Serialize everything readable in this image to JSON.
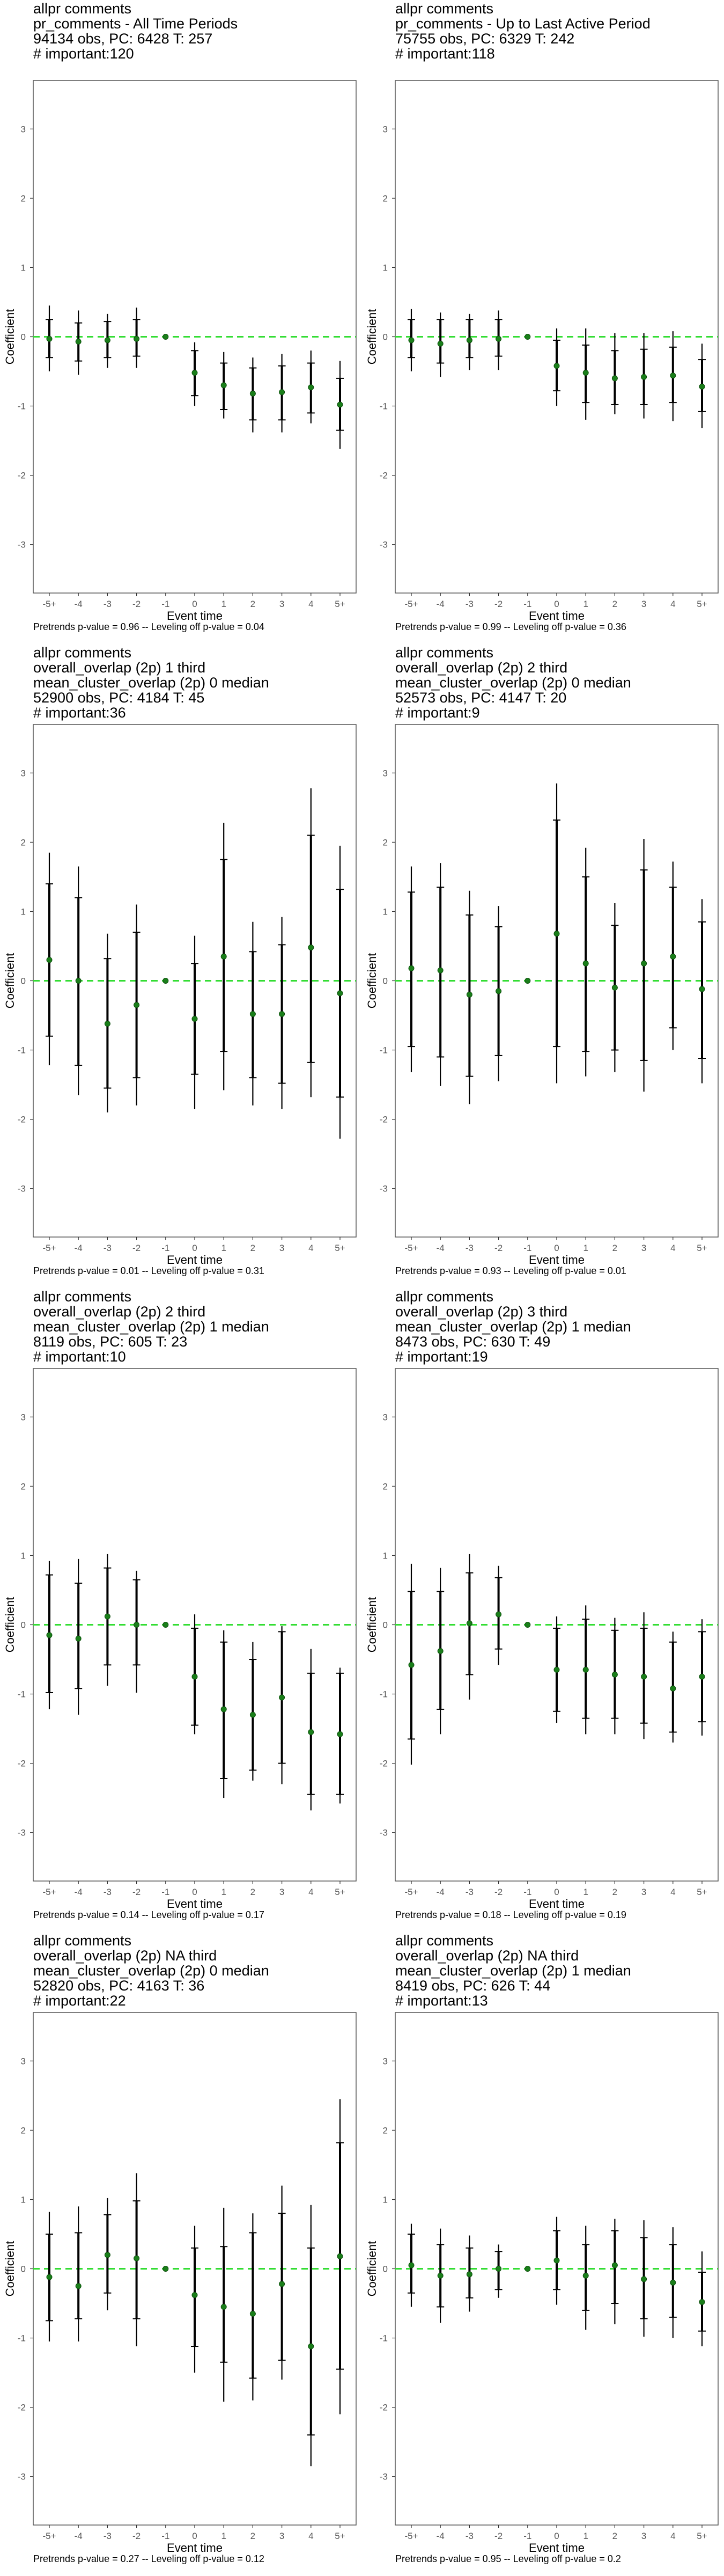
{
  "common": {
    "ylabel": "Coefficient",
    "xlabel": "Event time",
    "categories": [
      "-5+",
      "-4",
      "-3",
      "-2",
      "-1",
      "0",
      "1",
      "2",
      "3",
      "4",
      "5+"
    ],
    "yticks": [
      3,
      2,
      1,
      0,
      -1,
      -2,
      -3
    ],
    "point_color": "#1a7f1a",
    "ref_line_color": "#33dd33",
    "bar_color": "#000000"
  },
  "chart_data": [
    {
      "type": "scatter",
      "title_lines": [
        "allpr comments",
        "pr_comments - All Time Periods",
        "94134 obs, PC: 6428 T: 257",
        "# important:120"
      ],
      "footer": "Pretrends p-value = 0.96 -- Leveling off p-value = 0.04",
      "xlabel": "Event time",
      "ylabel": "Coefficient",
      "ylim": [
        -3.7,
        3.7
      ],
      "categories": [
        "-5+",
        "-4",
        "-3",
        "-2",
        "-1",
        "0",
        "1",
        "2",
        "3",
        "4",
        "5+"
      ],
      "estimates": [
        -0.03,
        -0.07,
        -0.05,
        -0.03,
        0,
        -0.52,
        -0.7,
        -0.82,
        -0.8,
        -0.73,
        -0.98
      ],
      "ci90_low": [
        -0.3,
        -0.35,
        -0.3,
        -0.28,
        0,
        -0.85,
        -1.05,
        -1.2,
        -1.2,
        -1.1,
        -1.35
      ],
      "ci90_high": [
        0.25,
        0.2,
        0.22,
        0.25,
        0,
        -0.2,
        -0.38,
        -0.45,
        -0.42,
        -0.38,
        -0.6
      ],
      "ci95_low": [
        -0.5,
        -0.55,
        -0.45,
        -0.45,
        0,
        -1.0,
        -1.18,
        -1.38,
        -1.38,
        -1.25,
        -1.62
      ],
      "ci95_high": [
        0.45,
        0.38,
        0.33,
        0.42,
        0,
        -0.08,
        -0.22,
        -0.3,
        -0.25,
        -0.2,
        -0.35
      ]
    },
    {
      "type": "scatter",
      "title_lines": [
        "allpr comments",
        "pr_comments - Up to Last Active Period",
        "75755 obs, PC: 6329 T: 242",
        "# important:118"
      ],
      "footer": "Pretrends p-value = 0.99 -- Leveling off p-value = 0.36",
      "xlabel": "Event time",
      "ylabel": "Coefficient",
      "ylim": [
        -3.7,
        3.7
      ],
      "categories": [
        "-5+",
        "-4",
        "-3",
        "-2",
        "-1",
        "0",
        "1",
        "2",
        "3",
        "4",
        "5+"
      ],
      "estimates": [
        -0.05,
        -0.1,
        -0.05,
        -0.03,
        0,
        -0.42,
        -0.52,
        -0.6,
        -0.58,
        -0.56,
        -0.72
      ],
      "ci90_low": [
        -0.3,
        -0.38,
        -0.3,
        -0.28,
        0,
        -0.78,
        -0.95,
        -0.98,
        -0.98,
        -0.95,
        -1.08
      ],
      "ci90_high": [
        0.25,
        0.25,
        0.25,
        0.25,
        0,
        -0.05,
        -0.12,
        -0.2,
        -0.18,
        -0.15,
        -0.33
      ],
      "ci95_low": [
        -0.5,
        -0.58,
        -0.48,
        -0.48,
        0,
        -1.0,
        -1.2,
        -1.12,
        -1.18,
        -1.22,
        -1.32
      ],
      "ci95_high": [
        0.4,
        0.35,
        0.33,
        0.38,
        0,
        0.12,
        0.12,
        0.05,
        0.05,
        0.08,
        -0.1
      ]
    },
    {
      "type": "scatter",
      "title_lines": [
        "allpr comments",
        "overall_overlap (2p) 1 third",
        "mean_cluster_overlap (2p) 0 median",
        "52900 obs, PC: 4184 T: 45",
        "# important:36"
      ],
      "footer": "Pretrends p-value = 0.01 -- Leveling off p-value = 0.31",
      "xlabel": "Event time",
      "ylabel": "Coefficient",
      "ylim": [
        -3.7,
        3.7
      ],
      "categories": [
        "-5+",
        "-4",
        "-3",
        "-2",
        "-1",
        "0",
        "1",
        "2",
        "3",
        "4",
        "5+"
      ],
      "estimates": [
        0.3,
        0.0,
        -0.62,
        -0.35,
        0,
        -0.55,
        0.35,
        -0.48,
        -0.48,
        0.48,
        -0.18
      ],
      "ci90_low": [
        -0.8,
        -1.22,
        -1.55,
        -1.4,
        0,
        -1.35,
        -1.02,
        -1.4,
        -1.48,
        -1.18,
        -1.68
      ],
      "ci90_high": [
        1.4,
        1.2,
        0.32,
        0.7,
        0,
        0.25,
        1.75,
        0.42,
        0.52,
        2.1,
        1.32
      ],
      "ci95_low": [
        -1.22,
        -1.65,
        -1.9,
        -1.8,
        0,
        -1.85,
        -1.58,
        -1.8,
        -1.85,
        -1.68,
        -2.28
      ],
      "ci95_high": [
        1.85,
        1.65,
        0.68,
        1.1,
        0,
        0.65,
        2.28,
        0.85,
        0.92,
        2.78,
        1.95
      ]
    },
    {
      "type": "scatter",
      "title_lines": [
        "allpr comments",
        "overall_overlap (2p) 2 third",
        "mean_cluster_overlap (2p) 0 median",
        "52573 obs, PC: 4147 T: 20",
        "# important:9"
      ],
      "footer": "Pretrends p-value = 0.93 -- Leveling off p-value = 0.01",
      "xlabel": "Event time",
      "ylabel": "Coefficient",
      "ylim": [
        -3.7,
        3.7
      ],
      "categories": [
        "-5+",
        "-4",
        "-3",
        "-2",
        "-1",
        "0",
        "1",
        "2",
        "3",
        "4",
        "5+"
      ],
      "estimates": [
        0.18,
        0.15,
        -0.2,
        -0.15,
        0,
        0.68,
        0.25,
        -0.1,
        0.25,
        0.35,
        -0.12
      ],
      "ci90_low": [
        -0.95,
        -1.1,
        -1.38,
        -1.08,
        0,
        -0.95,
        -1.02,
        -1.0,
        -1.15,
        -0.68,
        -1.12
      ],
      "ci90_high": [
        1.28,
        1.35,
        0.95,
        0.78,
        0,
        2.32,
        1.5,
        0.8,
        1.6,
        1.35,
        0.85
      ],
      "ci95_low": [
        -1.32,
        -1.52,
        -1.78,
        -1.45,
        0,
        -1.48,
        -1.38,
        -1.32,
        -1.6,
        -1.0,
        -1.48
      ],
      "ci95_high": [
        1.65,
        1.7,
        1.3,
        1.08,
        0,
        2.85,
        1.92,
        1.12,
        2.05,
        1.72,
        1.18
      ]
    },
    {
      "type": "scatter",
      "title_lines": [
        "allpr comments",
        "overall_overlap (2p) 2 third",
        "mean_cluster_overlap (2p) 1 median",
        "8119 obs, PC: 605 T: 23",
        "# important:10"
      ],
      "footer": "Pretrends p-value = 0.14 -- Leveling off p-value = 0.17",
      "xlabel": "Event time",
      "ylabel": "Coefficient",
      "ylim": [
        -3.7,
        3.7
      ],
      "categories": [
        "-5+",
        "-4",
        "-3",
        "-2",
        "-1",
        "0",
        "1",
        "2",
        "3",
        "4",
        "5+"
      ],
      "estimates": [
        -0.15,
        -0.2,
        0.12,
        0.0,
        0,
        -0.75,
        -1.22,
        -1.3,
        -1.05,
        -1.55,
        -1.58
      ],
      "ci90_low": [
        -0.98,
        -0.92,
        -0.58,
        -0.58,
        0,
        -1.45,
        -2.22,
        -2.1,
        -2.0,
        -2.45,
        -2.45
      ],
      "ci90_high": [
        0.72,
        0.6,
        0.82,
        0.65,
        0,
        -0.05,
        -0.25,
        -0.5,
        -0.1,
        -0.7,
        -0.7
      ],
      "ci95_low": [
        -1.22,
        -1.3,
        -0.88,
        -0.98,
        0,
        -1.58,
        -2.5,
        -2.25,
        -2.3,
        -2.68,
        -2.58
      ],
      "ci95_high": [
        0.92,
        0.95,
        1.02,
        0.78,
        0,
        0.15,
        -0.08,
        -0.25,
        -0.02,
        -0.35,
        -0.62
      ]
    },
    {
      "type": "scatter",
      "title_lines": [
        "allpr comments",
        "overall_overlap (2p) 3 third",
        "mean_cluster_overlap (2p) 1 median",
        "8473 obs, PC: 630 T: 49",
        "# important:19"
      ],
      "footer": "Pretrends p-value = 0.18 -- Leveling off p-value = 0.19",
      "xlabel": "Event time",
      "ylabel": "Coefficient",
      "ylim": [
        -3.7,
        3.7
      ],
      "categories": [
        "-5+",
        "-4",
        "-3",
        "-2",
        "-1",
        "0",
        "1",
        "2",
        "3",
        "4",
        "5+"
      ],
      "estimates": [
        -0.58,
        -0.38,
        0.02,
        0.15,
        0,
        -0.65,
        -0.65,
        -0.72,
        -0.75,
        -0.92,
        -0.75
      ],
      "ci90_low": [
        -1.65,
        -1.22,
        -0.72,
        -0.35,
        0,
        -1.25,
        -1.35,
        -1.35,
        -1.42,
        -1.55,
        -1.4
      ],
      "ci90_high": [
        0.48,
        0.48,
        0.75,
        0.68,
        0,
        -0.05,
        0.08,
        -0.08,
        -0.05,
        -0.25,
        -0.1
      ],
      "ci95_low": [
        -2.02,
        -1.58,
        -1.08,
        -0.58,
        0,
        -1.42,
        -1.58,
        -1.58,
        -1.65,
        -1.7,
        -1.6
      ],
      "ci95_high": [
        0.88,
        0.82,
        1.02,
        0.85,
        0,
        0.12,
        0.28,
        0.1,
        0.18,
        -0.1,
        0.08
      ]
    },
    {
      "type": "scatter",
      "title_lines": [
        "allpr comments",
        "overall_overlap (2p) NA third",
        "mean_cluster_overlap (2p) 0 median",
        "52820 obs, PC: 4163 T: 36",
        "# important:22"
      ],
      "footer": "Pretrends p-value = 0.27 -- Leveling off p-value = 0.12",
      "xlabel": "Event time",
      "ylabel": "Coefficient",
      "ylim": [
        -3.7,
        3.7
      ],
      "categories": [
        "-5+",
        "-4",
        "-3",
        "-2",
        "-1",
        "0",
        "1",
        "2",
        "3",
        "4",
        "5+"
      ],
      "estimates": [
        -0.12,
        -0.25,
        0.2,
        0.15,
        0,
        -0.38,
        -0.55,
        -0.65,
        -0.22,
        -1.12,
        0.18
      ],
      "ci90_low": [
        -0.75,
        -0.72,
        -0.35,
        -0.72,
        0,
        -1.12,
        -1.35,
        -1.58,
        -1.32,
        -2.4,
        -1.45
      ],
      "ci90_high": [
        0.5,
        0.52,
        0.78,
        0.98,
        0,
        0.3,
        0.32,
        0.52,
        0.8,
        0.3,
        1.82
      ],
      "ci95_low": [
        -1.05,
        -1.05,
        -0.6,
        -1.12,
        0,
        -1.5,
        -1.92,
        -1.9,
        -1.6,
        -2.85,
        -2.1
      ],
      "ci95_high": [
        0.82,
        0.9,
        1.02,
        1.38,
        0,
        0.62,
        0.88,
        0.8,
        1.2,
        0.92,
        2.45
      ]
    },
    {
      "type": "scatter",
      "title_lines": [
        "allpr comments",
        "overall_overlap (2p) NA third",
        "mean_cluster_overlap (2p) 1 median",
        "8419 obs, PC: 626 T: 44",
        "# important:13"
      ],
      "footer": "Pretrends p-value = 0.95 -- Leveling off p-value = 0.2",
      "xlabel": "Event time",
      "ylabel": "Coefficient",
      "ylim": [
        -3.7,
        3.7
      ],
      "categories": [
        "-5+",
        "-4",
        "-3",
        "-2",
        "-1",
        "0",
        "1",
        "2",
        "3",
        "4",
        "5+"
      ],
      "estimates": [
        0.05,
        -0.1,
        -0.08,
        0.0,
        0,
        0.12,
        -0.1,
        0.05,
        -0.15,
        -0.2,
        -0.48
      ],
      "ci90_low": [
        -0.35,
        -0.55,
        -0.42,
        -0.3,
        0,
        -0.3,
        -0.6,
        -0.5,
        -0.72,
        -0.7,
        -0.9
      ],
      "ci90_high": [
        0.5,
        0.35,
        0.3,
        0.25,
        0,
        0.55,
        0.35,
        0.55,
        0.45,
        0.35,
        -0.05
      ],
      "ci95_low": [
        -0.55,
        -0.78,
        -0.62,
        -0.42,
        0,
        -0.52,
        -0.88,
        -0.8,
        -0.98,
        -1.0,
        -1.12
      ],
      "ci95_high": [
        0.65,
        0.58,
        0.48,
        0.35,
        0,
        0.75,
        0.62,
        0.72,
        0.7,
        0.6,
        0.25
      ]
    }
  ]
}
